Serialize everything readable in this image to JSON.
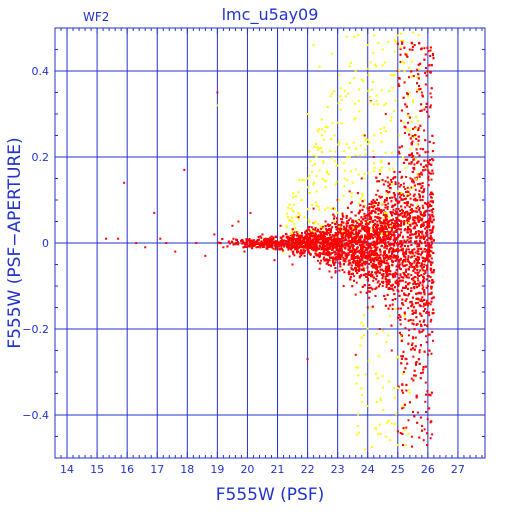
{
  "chart_data": {
    "type": "scatter",
    "title": "lmc_u5ay09",
    "subtitle": "WF2",
    "xlabel": "F555W (PSF)",
    "ylabel": "F555W (PSF−APERTURE)",
    "xlim": [
      13.6,
      27.9
    ],
    "ylim": [
      -0.5,
      0.5
    ],
    "x_ticks": [
      14,
      15,
      16,
      17,
      18,
      19,
      20,
      21,
      22,
      23,
      24,
      25,
      26,
      27
    ],
    "y_ticks": [
      -0.4,
      -0.2,
      0,
      0.2,
      0.4
    ],
    "y_tick_labels": [
      "−0.4",
      "−0.2",
      "0",
      "0.2",
      "0.4"
    ],
    "grid": true,
    "series": [
      {
        "color": "#ffff00",
        "points": [
          [
            19.0,
            0.32
          ],
          [
            20.3,
            -0.01
          ],
          [
            21.2,
            -0.02
          ],
          [
            21.5,
            0.05
          ],
          [
            21.7,
            0.07
          ],
          [
            21.8,
            0.1
          ],
          [
            21.9,
            0.06
          ],
          [
            22.0,
            0.3
          ],
          [
            22.1,
            0.19
          ],
          [
            22.2,
            0.46
          ],
          [
            22.3,
            0.12
          ],
          [
            22.4,
            0.22
          ],
          [
            22.5,
            0.04
          ],
          [
            22.6,
            0.27
          ],
          [
            22.7,
            0.16
          ],
          [
            22.8,
            0.08
          ],
          [
            22.9,
            0.25
          ],
          [
            23.0,
            0.18
          ],
          [
            23.1,
            0.36
          ],
          [
            23.2,
            0.11
          ],
          [
            23.3,
            0.48
          ],
          [
            23.4,
            0.2
          ],
          [
            23.5,
            0.14
          ],
          [
            23.6,
            0.29
          ],
          [
            23.7,
            0.07
          ],
          [
            23.8,
            0.38
          ],
          [
            23.9,
            0.15
          ],
          [
            24.0,
            0.24
          ],
          [
            24.1,
            0.42
          ],
          [
            24.2,
            0.09
          ],
          [
            24.3,
            0.33
          ],
          [
            24.4,
            0.17
          ],
          [
            24.5,
            0.45
          ],
          [
            24.6,
            0.26
          ],
          [
            24.7,
            0.06
          ],
          [
            24.8,
            0.21
          ],
          [
            24.9,
            0.39
          ],
          [
            25.0,
            0.12
          ],
          [
            25.1,
            0.47
          ],
          [
            25.2,
            0.28
          ],
          [
            25.3,
            0.44
          ],
          [
            25.4,
            0.35
          ],
          [
            25.5,
            0.49
          ],
          [
            22.4,
            0.41
          ],
          [
            22.8,
            0.44
          ],
          [
            23.1,
            0.31
          ],
          [
            23.6,
            0.4
          ],
          [
            22.6,
            0.13
          ],
          [
            23.9,
            0.03
          ],
          [
            24.2,
            -0.03
          ],
          [
            23.9,
            -0.06
          ],
          [
            24.5,
            -0.31
          ],
          [
            24.8,
            -0.42
          ],
          [
            25.0,
            -0.47
          ],
          [
            24.3,
            -0.37
          ],
          [
            24.6,
            -0.45
          ],
          [
            23.8,
            -0.22
          ],
          [
            24.9,
            -0.36
          ],
          [
            21.3,
            0.04
          ],
          [
            22.0,
            0.15
          ],
          [
            22.9,
            0.05
          ],
          [
            23.3,
            0.23
          ],
          [
            23.7,
            0.33
          ],
          [
            24.0,
            0.46
          ]
        ]
      },
      {
        "color": "#ff0000",
        "points": [
          [
            15.3,
            0.01
          ],
          [
            15.7,
            0.01
          ],
          [
            15.9,
            0.14
          ],
          [
            16.3,
            0.0
          ],
          [
            16.6,
            -0.01
          ],
          [
            16.9,
            0.07
          ],
          [
            17.1,
            0.01
          ],
          [
            17.3,
            0.0
          ],
          [
            17.6,
            -0.02
          ],
          [
            17.9,
            0.17
          ],
          [
            18.3,
            0.0
          ],
          [
            18.6,
            -0.03
          ],
          [
            18.9,
            0.02
          ],
          [
            19.0,
            0.35
          ],
          [
            19.2,
            -0.01
          ],
          [
            19.5,
            0.04
          ],
          [
            19.7,
            0.05
          ],
          [
            19.9,
            -0.02
          ],
          [
            20.1,
            0.07
          ],
          [
            20.3,
            -0.01
          ],
          [
            20.5,
            0.02
          ],
          [
            20.7,
            0.0
          ],
          [
            20.9,
            -0.04
          ],
          [
            21.1,
            0.04
          ],
          [
            21.3,
            0.02
          ],
          [
            21.5,
            -0.05
          ],
          [
            21.7,
            0.06
          ],
          [
            21.9,
            -0.03
          ],
          [
            22.0,
            -0.27
          ],
          [
            22.2,
            0.08
          ],
          [
            22.4,
            -0.06
          ],
          [
            22.6,
            0.05
          ],
          [
            22.8,
            -0.08
          ],
          [
            23.0,
            0.1
          ],
          [
            23.2,
            -0.1
          ],
          [
            23.4,
            0.12
          ],
          [
            23.6,
            -0.12
          ],
          [
            23.8,
            0.15
          ],
          [
            24.0,
            -0.15
          ],
          [
            24.2,
            0.2
          ],
          [
            24.4,
            -0.2
          ],
          [
            24.6,
            0.3
          ],
          [
            24.8,
            -0.25
          ],
          [
            25.0,
            0.4
          ],
          [
            25.2,
            -0.3
          ],
          [
            25.4,
            0.45
          ],
          [
            25.6,
            -0.22
          ],
          [
            25.8,
            0.35
          ],
          [
            26.0,
            -0.1
          ],
          [
            26.1,
            0.32
          ],
          [
            23.6,
            -0.26
          ],
          [
            23.9,
            0.25
          ],
          [
            24.1,
            0.33
          ]
        ]
      }
    ]
  }
}
